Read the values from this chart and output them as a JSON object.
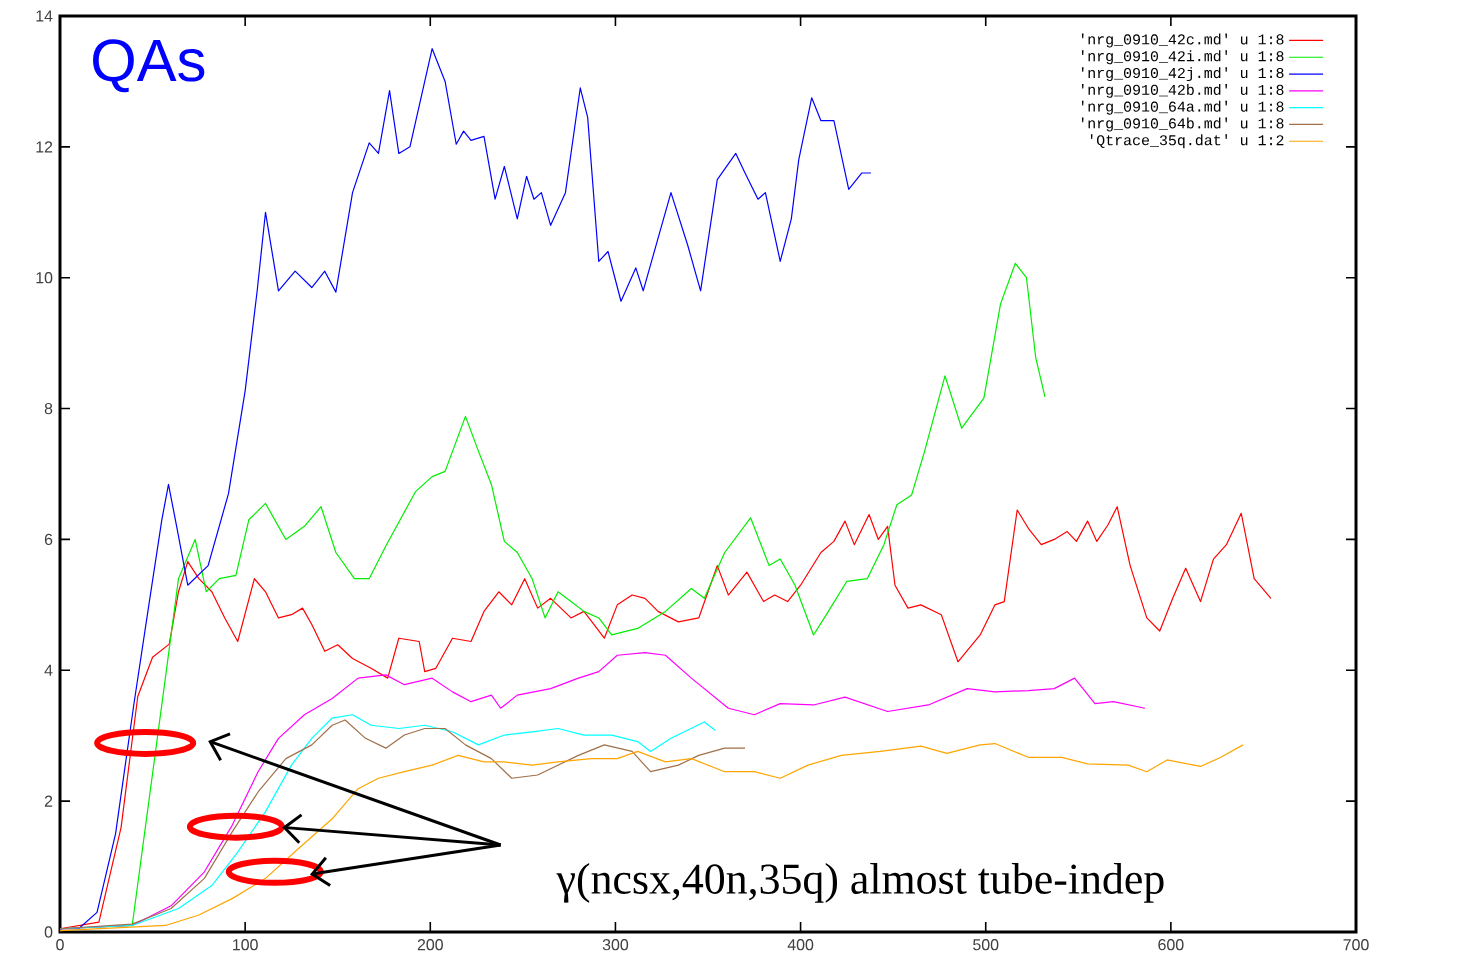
{
  "chart_data": {
    "type": "line",
    "legend": "top right",
    "xlim": [
      0,
      700
    ],
    "ylim": [
      0,
      14
    ],
    "xticks": [
      0,
      100,
      200,
      300,
      400,
      500,
      600,
      700
    ],
    "yticks": [
      0,
      2,
      4,
      6,
      8,
      10,
      12,
      14
    ],
    "annotations": [
      "QAs",
      "γ(ncsx,40n,35q) almost tube-indep"
    ],
    "series": [
      {
        "name": "'nrg_0910_42c.md' u 1:8",
        "color": "#ff0000",
        "x": [
          0,
          21,
          33,
          42,
          50,
          59,
          64,
          69,
          75,
          82,
          89,
          96,
          105,
          111,
          118,
          125,
          131,
          136,
          143,
          150,
          158,
          168,
          177,
          183,
          194,
          197,
          203,
          212,
          222,
          229,
          237,
          244,
          251,
          258,
          265,
          276,
          283,
          294,
          301,
          309,
          316,
          323,
          334,
          345,
          355,
          361,
          371,
          380,
          386,
          393,
          400,
          411,
          418,
          424,
          429,
          437,
          442,
          447,
          451,
          458,
          465,
          476,
          485,
          497,
          505,
          510,
          517,
          523,
          530,
          537,
          544,
          549,
          555,
          560,
          566,
          571,
          578,
          587,
          594,
          601,
          608,
          616,
          623,
          630,
          638,
          645,
          654
        ],
        "values": [
          0.05,
          0.15,
          1.6,
          3.6,
          4.2,
          4.4,
          5.2,
          5.66,
          5.4,
          5.2,
          4.8,
          4.44,
          5.4,
          5.2,
          4.8,
          4.85,
          4.95,
          4.7,
          4.29,
          4.39,
          4.18,
          4.03,
          3.88,
          4.49,
          4.44,
          3.98,
          4.03,
          4.49,
          4.44,
          4.9,
          5.2,
          5.0,
          5.4,
          4.95,
          5.1,
          4.8,
          4.9,
          4.49,
          5.0,
          5.15,
          5.1,
          4.9,
          4.74,
          4.8,
          5.6,
          5.15,
          5.5,
          5.05,
          5.15,
          5.05,
          5.3,
          5.8,
          5.97,
          6.28,
          5.92,
          6.38,
          6.0,
          6.2,
          5.3,
          4.95,
          5.0,
          4.85,
          4.13,
          4.54,
          5.0,
          5.05,
          6.45,
          6.17,
          5.92,
          6.0,
          6.12,
          5.97,
          6.28,
          5.97,
          6.22,
          6.5,
          5.6,
          4.8,
          4.6,
          5.1,
          5.56,
          5.05,
          5.7,
          5.92,
          6.4,
          5.4,
          5.1
        ]
      },
      {
        "name": "'nrg_0910_42i.md' u 1:8",
        "color": "#00ee00",
        "x": [
          0,
          39,
          48,
          57,
          64,
          73,
          79,
          86,
          95,
          102,
          111,
          118,
          122,
          132,
          141,
          149,
          159,
          167,
          176,
          192,
          201,
          208,
          219,
          226,
          233,
          240,
          247,
          255,
          262,
          269,
          276,
          283,
          291,
          298,
          312,
          327,
          341,
          348,
          359,
          373,
          383,
          389,
          397,
          407,
          415,
          425,
          436,
          445,
          452,
          460,
          467,
          478,
          487,
          499,
          508,
          516,
          522,
          527,
          532
        ],
        "values": [
          0.05,
          0.1,
          2.0,
          3.9,
          5.4,
          6.0,
          5.2,
          5.4,
          5.45,
          6.3,
          6.55,
          6.2,
          6.0,
          6.2,
          6.5,
          5.8,
          5.4,
          5.4,
          5.9,
          6.73,
          6.96,
          7.04,
          7.88,
          7.35,
          6.84,
          5.97,
          5.8,
          5.4,
          4.8,
          5.2,
          5.05,
          4.9,
          4.8,
          4.54,
          4.64,
          4.9,
          5.25,
          5.1,
          5.8,
          6.33,
          5.6,
          5.7,
          5.3,
          4.54,
          4.9,
          5.36,
          5.4,
          5.92,
          6.53,
          6.68,
          7.35,
          8.5,
          7.7,
          8.16,
          9.6,
          10.22,
          10.0,
          8.78,
          8.18
        ]
      },
      {
        "name": "'nrg_0910_42j.md' u 1:8",
        "color": "#0000ff",
        "x": [
          0,
          10,
          20,
          30,
          40,
          48,
          55,
          58.6,
          63,
          69,
          80,
          91,
          100,
          106.5,
          111,
          118,
          127,
          136,
          143,
          149,
          158,
          167,
          172,
          178,
          183,
          189,
          201,
          208,
          214,
          218,
          222,
          229,
          235,
          240,
          247,
          252,
          256,
          260,
          265,
          273,
          281,
          285,
          291,
          296,
          303,
          311,
          315,
          323,
          330,
          339,
          346,
          355,
          365,
          370,
          377,
          381,
          389,
          395,
          399,
          406,
          411,
          418,
          426,
          433,
          438
        ],
        "values": [
          0.05,
          0.05,
          0.3,
          1.5,
          3.5,
          5.0,
          6.3,
          6.84,
          6.2,
          5.3,
          5.6,
          6.7,
          8.27,
          9.8,
          11.0,
          9.8,
          10.1,
          9.85,
          10.1,
          9.78,
          11.3,
          12.06,
          11.9,
          12.86,
          11.9,
          12.0,
          13.5,
          13.0,
          12.04,
          12.24,
          12.1,
          12.16,
          11.2,
          11.7,
          10.9,
          11.55,
          11.2,
          11.3,
          10.8,
          11.3,
          12.9,
          12.45,
          10.25,
          10.4,
          9.64,
          10.15,
          9.8,
          10.6,
          11.3,
          10.5,
          9.8,
          11.5,
          11.9,
          11.6,
          11.2,
          11.3,
          10.25,
          10.9,
          11.8,
          12.75,
          12.4,
          12.4,
          11.35,
          11.6,
          11.6
        ]
      },
      {
        "name": "'nrg_0910_42b.md' u 1:8",
        "color": "#ff00ff",
        "x": [
          0,
          39,
          60,
          78,
          93,
          107,
          118,
          132,
          147,
          161,
          176,
          186,
          201,
          212,
          222,
          233,
          238,
          247,
          265,
          280,
          291,
          301,
          316,
          327,
          341,
          361,
          375,
          389,
          407,
          424,
          447,
          469,
          490,
          505,
          523,
          537,
          548,
          559,
          569,
          586
        ],
        "values": [
          0.05,
          0.1,
          0.4,
          0.92,
          1.63,
          2.45,
          2.96,
          3.32,
          3.57,
          3.88,
          3.93,
          3.78,
          3.88,
          3.67,
          3.52,
          3.62,
          3.42,
          3.62,
          3.72,
          3.88,
          3.98,
          4.23,
          4.27,
          4.23,
          3.88,
          3.42,
          3.32,
          3.49,
          3.47,
          3.59,
          3.37,
          3.47,
          3.72,
          3.67,
          3.69,
          3.72,
          3.88,
          3.49,
          3.52,
          3.42
        ]
      },
      {
        "name": "'nrg_0910_64a.md' u 1:8",
        "color": "#00ffff",
        "x": [
          0,
          39,
          64,
          82,
          96,
          111,
          125,
          136,
          147,
          158,
          168,
          183,
          197,
          212,
          226,
          240,
          255,
          269,
          283,
          298,
          312,
          319,
          330,
          348,
          354
        ],
        "values": [
          0.05,
          0.1,
          0.36,
          0.71,
          1.22,
          1.84,
          2.55,
          2.96,
          3.27,
          3.32,
          3.16,
          3.11,
          3.16,
          3.06,
          2.86,
          3.01,
          3.06,
          3.11,
          3.01,
          3.01,
          2.91,
          2.76,
          2.96,
          3.21,
          3.08
        ]
      },
      {
        "name": "'nrg_0910_64b.md' u 1:8",
        "color": "#a0704a",
        "x": [
          0,
          39,
          60,
          78,
          93,
          107,
          122,
          136,
          147,
          154,
          165,
          176,
          186,
          197,
          208,
          219,
          233,
          244,
          258,
          269,
          280,
          294,
          309,
          319,
          334,
          345,
          359,
          370
        ],
        "values": [
          0.05,
          0.12,
          0.36,
          0.82,
          1.53,
          2.14,
          2.65,
          2.86,
          3.16,
          3.24,
          2.96,
          2.81,
          3.01,
          3.11,
          3.11,
          2.86,
          2.65,
          2.35,
          2.4,
          2.55,
          2.7,
          2.86,
          2.76,
          2.45,
          2.55,
          2.7,
          2.81,
          2.81
        ]
      },
      {
        "name": "'Qtrace_35q.dat' u 1:2",
        "color": "#ffa500",
        "x": [
          0,
          57,
          75,
          93,
          111,
          129,
          147,
          161,
          172,
          186,
          201,
          215,
          229,
          240,
          255,
          269,
          287,
          301,
          312,
          327,
          341,
          359,
          375,
          389,
          404,
          422,
          443,
          465,
          479,
          497,
          505,
          523,
          541,
          555,
          577,
          587,
          598,
          616,
          627,
          639
        ],
        "values": [
          0.02,
          0.1,
          0.26,
          0.51,
          0.82,
          1.28,
          1.73,
          2.19,
          2.35,
          2.45,
          2.55,
          2.7,
          2.6,
          2.6,
          2.55,
          2.6,
          2.65,
          2.65,
          2.76,
          2.6,
          2.65,
          2.45,
          2.45,
          2.35,
          2.55,
          2.7,
          2.76,
          2.84,
          2.73,
          2.86,
          2.88,
          2.67,
          2.67,
          2.57,
          2.55,
          2.45,
          2.63,
          2.53,
          2.67,
          2.86
        ]
      }
    ]
  }
}
